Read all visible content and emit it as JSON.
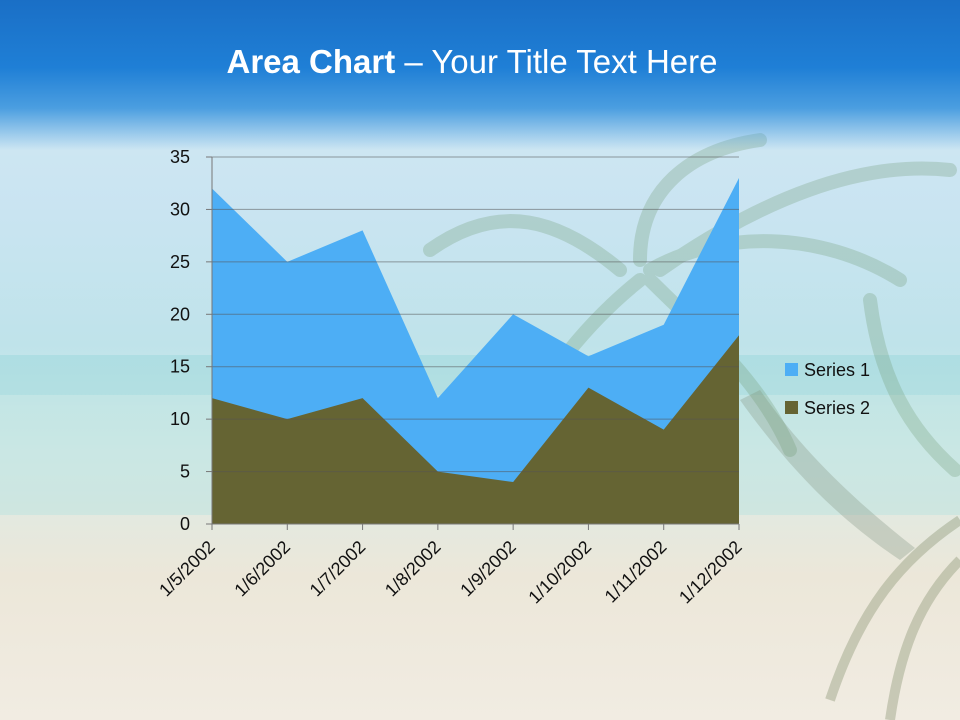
{
  "slide": {
    "title_bold": "Area Chart",
    "title_rest": " – Your Title Text Here",
    "colors": {
      "title_bar": "#1f7fd6",
      "series1": "#4daef5",
      "series2": "#656433"
    }
  },
  "chart_data": {
    "type": "area",
    "categories": [
      "1/5/2002",
      "1/6/2002",
      "1/7/2002",
      "1/8/2002",
      "1/9/2002",
      "1/10/2002",
      "1/11/2002",
      "1/12/2002"
    ],
    "series": [
      {
        "name": "Series 1",
        "values": [
          32,
          25,
          28,
          12,
          20,
          16,
          19,
          33
        ],
        "color": "#4daef5"
      },
      {
        "name": "Series 2",
        "values": [
          12,
          10,
          12,
          5,
          4,
          13,
          9,
          18
        ],
        "color": "#656433"
      }
    ],
    "ylim": [
      0,
      35
    ],
    "yticks": [
      0,
      5,
      10,
      15,
      20,
      25,
      30,
      35
    ],
    "grid": true,
    "legend": "right",
    "xlabel": "",
    "ylabel": ""
  }
}
